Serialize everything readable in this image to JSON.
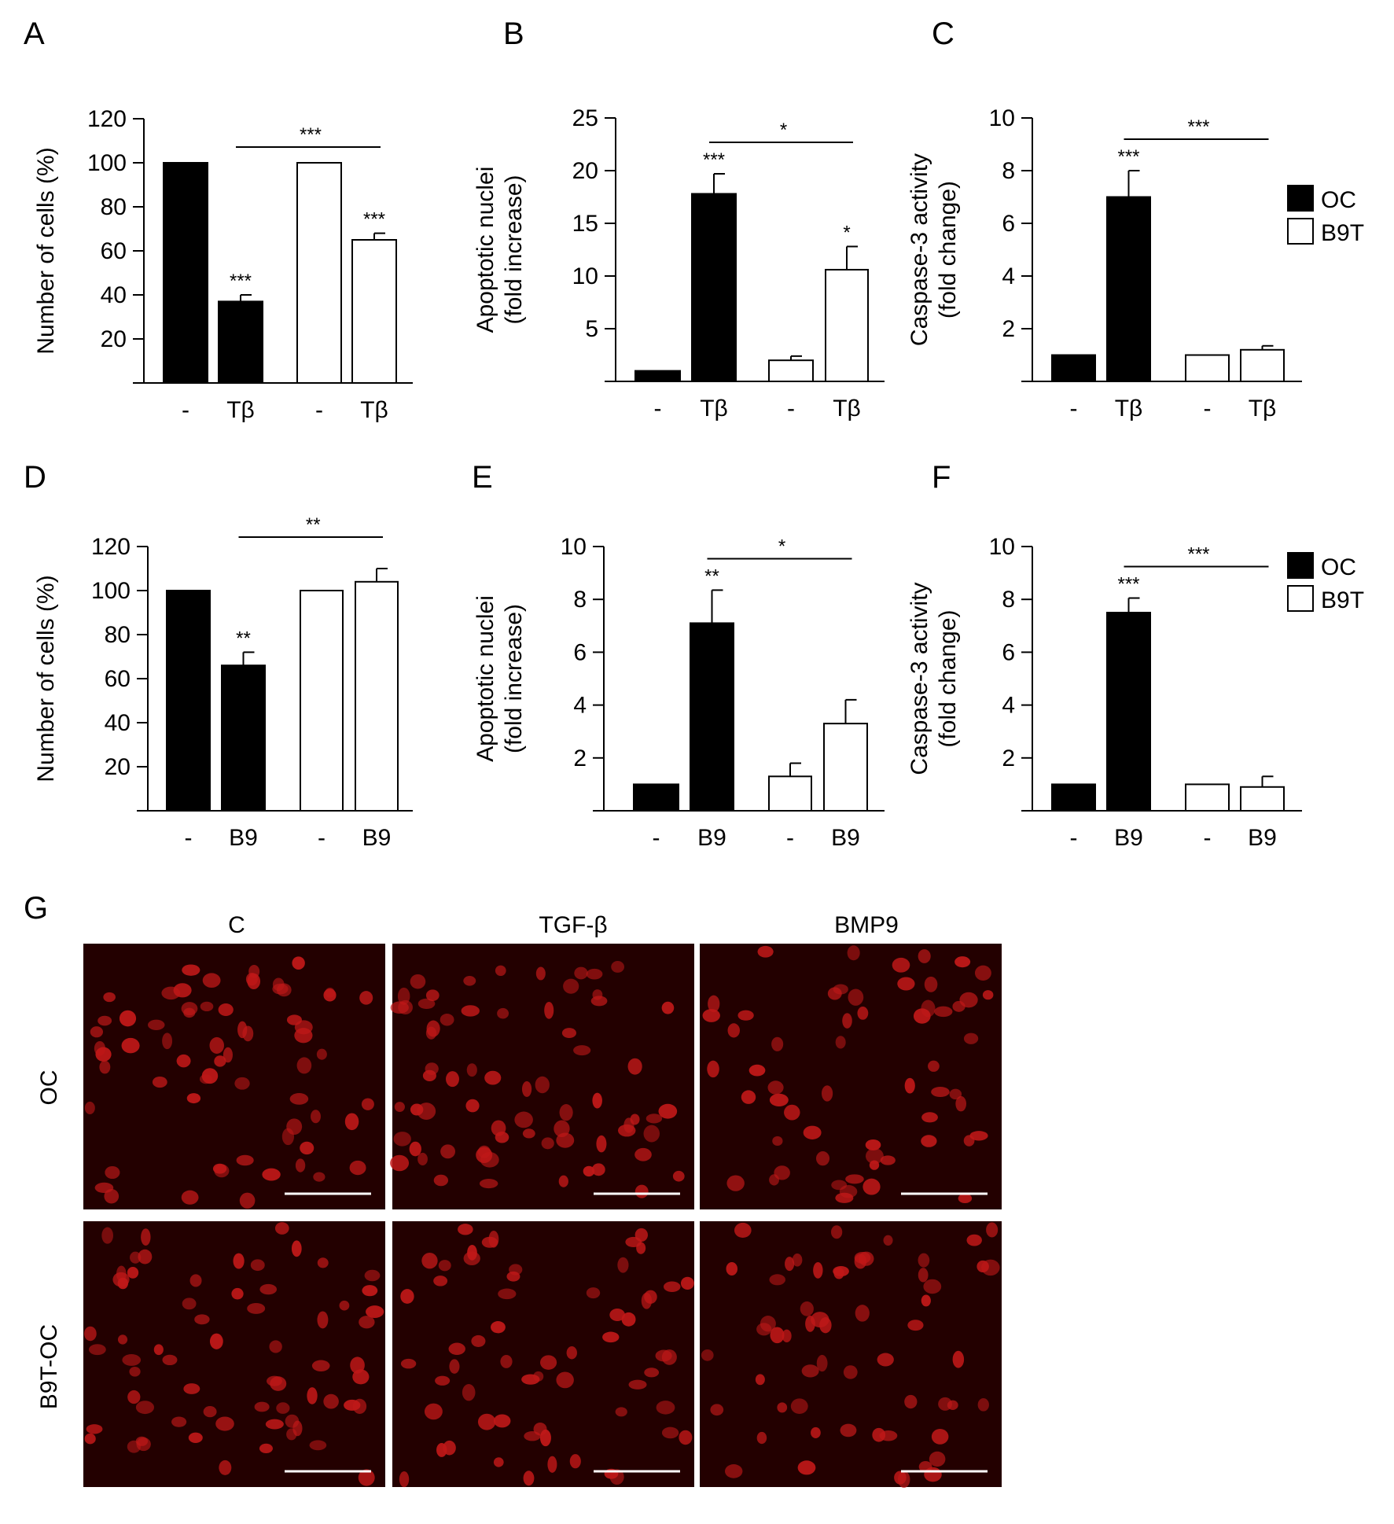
{
  "panels": [
    "A",
    "B",
    "C",
    "D",
    "E",
    "F",
    "G"
  ],
  "legend": {
    "entries": [
      {
        "name": "OC",
        "color": "#000000"
      },
      {
        "name": "B9T",
        "color": "#ffffff"
      }
    ],
    "placement": "right"
  },
  "chart_data": [
    {
      "panel": "A",
      "type": "bar",
      "ylabel": "Number  of cells (%)",
      "ylim": [
        0,
        120
      ],
      "yticks": [
        20,
        40,
        60,
        80,
        100,
        120
      ],
      "categories": [
        "-",
        "Tβ",
        "-",
        "Tβ"
      ],
      "values": [
        100,
        37,
        100,
        65
      ],
      "errors": [
        0,
        3,
        0,
        3
      ],
      "groups": [
        "OC",
        "OC",
        "B9T",
        "B9T"
      ],
      "bar_stars": [
        "",
        "***",
        "",
        "***"
      ],
      "bracket": {
        "from": 1,
        "to": 3,
        "label": "***"
      }
    },
    {
      "panel": "B",
      "type": "bar",
      "ylabel": [
        "Apoptotic nuclei",
        "(fold increase)"
      ],
      "ylim": [
        0,
        25
      ],
      "yticks": [
        5,
        10,
        15,
        20,
        25
      ],
      "categories": [
        "-",
        "Tβ",
        "-",
        "Tβ"
      ],
      "values": [
        1,
        17.8,
        2,
        10.6
      ],
      "errors": [
        0,
        1.9,
        0.4,
        2.2
      ],
      "groups": [
        "OC",
        "OC",
        "B9T",
        "B9T"
      ],
      "bar_stars": [
        "",
        "***",
        "",
        "*"
      ],
      "bracket": {
        "from": 1,
        "to": 3,
        "label": "*"
      }
    },
    {
      "panel": "C",
      "type": "bar",
      "ylabel": [
        "Caspase-3 activity",
        "(fold change)"
      ],
      "ylim": [
        0,
        10
      ],
      "yticks": [
        2,
        4,
        6,
        8,
        10
      ],
      "categories": [
        "-",
        "Tβ",
        "-",
        "Tβ"
      ],
      "values": [
        1,
        7,
        1,
        1.2
      ],
      "errors": [
        0,
        1.0,
        0,
        0.15
      ],
      "groups": [
        "OC",
        "OC",
        "B9T",
        "B9T"
      ],
      "bar_stars": [
        "",
        "***",
        "",
        ""
      ],
      "bracket": {
        "from": 1,
        "to": 3,
        "label": "***"
      }
    },
    {
      "panel": "D",
      "type": "bar",
      "ylabel": "Number  of cells (%)",
      "ylim": [
        0,
        120
      ],
      "yticks": [
        20,
        40,
        60,
        80,
        100,
        120
      ],
      "categories": [
        "-",
        "B9",
        "-",
        "B9"
      ],
      "values": [
        100,
        66,
        100,
        104
      ],
      "errors": [
        0,
        6,
        0,
        6
      ],
      "groups": [
        "OC",
        "OC",
        "B9T",
        "B9T"
      ],
      "bar_stars": [
        "",
        "**",
        "",
        ""
      ],
      "bracket": {
        "from": 1,
        "to": 3,
        "label": "**"
      }
    },
    {
      "panel": "E",
      "type": "bar",
      "ylabel": [
        "Apoptotic nuclei",
        "(fold increase)"
      ],
      "ylim": [
        0,
        10
      ],
      "yticks": [
        2,
        4,
        6,
        8,
        10
      ],
      "categories": [
        "-",
        "B9",
        "-",
        "B9"
      ],
      "values": [
        1,
        7.1,
        1.3,
        3.3
      ],
      "errors": [
        0,
        1.25,
        0.5,
        0.9
      ],
      "groups": [
        "OC",
        "OC",
        "B9T",
        "B9T"
      ],
      "bar_stars": [
        "",
        "**",
        "",
        ""
      ],
      "bracket": {
        "from": 1,
        "to": 3,
        "label": "*"
      }
    },
    {
      "panel": "F",
      "type": "bar",
      "ylabel": [
        "Caspase-3 activity",
        "(fold change)"
      ],
      "ylim": [
        0,
        10
      ],
      "yticks": [
        2,
        4,
        6,
        8,
        10
      ],
      "categories": [
        "-",
        "B9",
        "-",
        "B9"
      ],
      "values": [
        1,
        7.5,
        1,
        0.9
      ],
      "errors": [
        0,
        0.55,
        0,
        0.4
      ],
      "groups": [
        "OC",
        "OC",
        "B9T",
        "B9T"
      ],
      "bar_stars": [
        "",
        "***",
        "",
        ""
      ],
      "bracket": {
        "from": 1,
        "to": 3,
        "label": "***"
      }
    }
  ],
  "micrographs": {
    "columns": [
      "C",
      "TGF-β",
      "BMP9"
    ],
    "rows": [
      "OC",
      "B9T-OC"
    ],
    "background_color": "#230000",
    "nucleus_color": "#c01818",
    "scale_bar_color": "#ffffff"
  }
}
